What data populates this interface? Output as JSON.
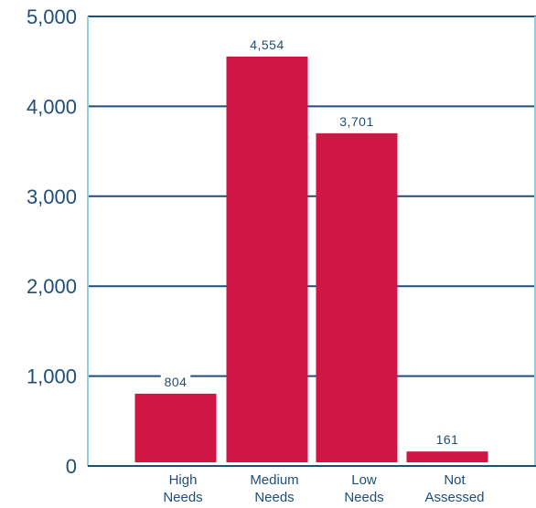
{
  "chart_data": {
    "type": "bar",
    "title": "",
    "xlabel": "",
    "ylabel": "",
    "categories": [
      [
        "High",
        "Needs"
      ],
      [
        "Medium",
        "Needs"
      ],
      [
        "Low",
        "Needs"
      ],
      [
        "Not",
        "Assessed"
      ]
    ],
    "values": [
      804,
      4554,
      3701,
      161
    ],
    "value_labels": [
      "804",
      "4,554",
      "3,701",
      "161"
    ],
    "ylim": [
      0,
      5000
    ],
    "yticks": [
      0,
      1000,
      2000,
      3000,
      4000,
      5000
    ],
    "ytick_labels": [
      "0",
      "1,000",
      "2,000",
      "3,000",
      "4,000",
      "5,000"
    ],
    "grid": true,
    "colors": {
      "bar": "#d01645",
      "axis": "#1f4e79",
      "grid": "#1f4e79",
      "text": "#1f4e79",
      "frame": "#8fd0da"
    }
  }
}
